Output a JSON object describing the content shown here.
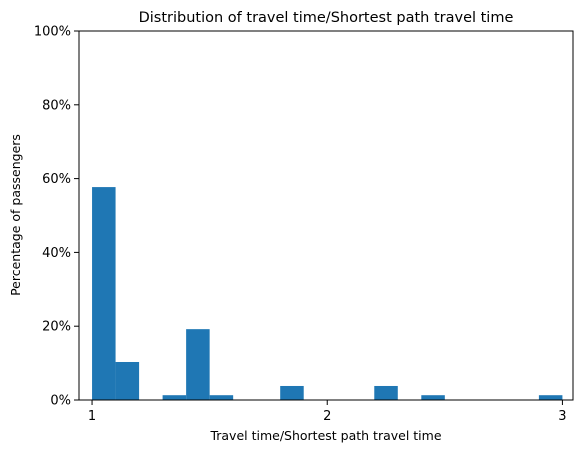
{
  "chart_data": {
    "type": "bar",
    "title": "Distribution of travel time/Shortest path travel time",
    "xlabel": "Travel time/Shortest path travel time",
    "ylabel": "Percentage of passengers",
    "xlim": [
      0.9445,
      3.045
    ],
    "ylim": [
      0,
      100
    ],
    "xticks": [
      {
        "value": 1,
        "label": "1"
      },
      {
        "value": 2,
        "label": "2"
      },
      {
        "value": 3,
        "label": "3"
      }
    ],
    "yticks": [
      {
        "value": 0,
        "label": "0%"
      },
      {
        "value": 20,
        "label": "20%"
      },
      {
        "value": 40,
        "label": "40%"
      },
      {
        "value": 60,
        "label": "60%"
      },
      {
        "value": 80,
        "label": "80%"
      },
      {
        "value": 100,
        "label": "100%"
      }
    ],
    "bin_width": 0.1,
    "bins": [
      {
        "x0": 1.0,
        "x1": 1.1,
        "value": 57.7
      },
      {
        "x0": 1.1,
        "x1": 1.2,
        "value": 10.3
      },
      {
        "x0": 1.3,
        "x1": 1.4,
        "value": 1.3
      },
      {
        "x0": 1.4,
        "x1": 1.5,
        "value": 19.2
      },
      {
        "x0": 1.5,
        "x1": 1.6,
        "value": 1.3
      },
      {
        "x0": 1.8,
        "x1": 1.9,
        "value": 3.8
      },
      {
        "x0": 2.2,
        "x1": 2.3,
        "value": 3.8
      },
      {
        "x0": 2.4,
        "x1": 2.5,
        "value": 1.3
      },
      {
        "x0": 2.9,
        "x1": 3.0,
        "value": 1.3
      }
    ],
    "bar_color": "#1f77b4",
    "grid": false,
    "legend": "none"
  }
}
